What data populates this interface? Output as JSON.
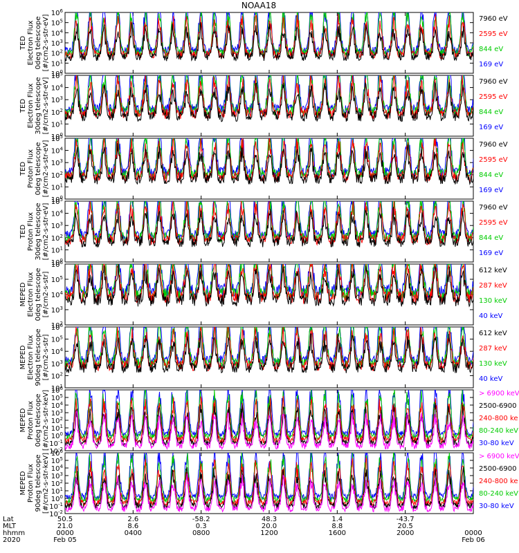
{
  "chart_data": {
    "type": "line",
    "title": "NOAA18",
    "x": [
      "0000",
      "0400",
      "0800",
      "1200",
      "1600",
      "2000",
      "0000"
    ],
    "panels": [
      {
        "ylabel": [
          "TED",
          "Electron Flux",
          "0deg telescope",
          "[#/cm2-s-str-eV]"
        ],
        "yscale": "log",
        "ylim_exp": [
          0,
          6
        ],
        "legend": [
          {
            "label": "7960 eV",
            "color": "#000000"
          },
          {
            "label": "2595 eV",
            "color": "#ff0000"
          },
          {
            "label": "844 eV",
            "color": "#00cc00"
          },
          {
            "label": "169 eV",
            "color": "#0000ff"
          }
        ]
      },
      {
        "ylabel": [
          "TED",
          "Electron Flux",
          "30deg telescope",
          "[#/cm2-s-str-eV]"
        ],
        "yscale": "log",
        "ylim_exp": [
          0,
          5
        ],
        "legend": [
          {
            "label": "7960 eV",
            "color": "#000000"
          },
          {
            "label": "2595 eV",
            "color": "#ff0000"
          },
          {
            "label": "844 eV",
            "color": "#00cc00"
          },
          {
            "label": "169 eV",
            "color": "#0000ff"
          }
        ]
      },
      {
        "ylabel": [
          "TED",
          "Proton Flux",
          "0deg telescope",
          "[#/cm2-s-str-eV]"
        ],
        "yscale": "log",
        "ylim_exp": [
          0,
          5
        ],
        "legend": [
          {
            "label": "7960 eV",
            "color": "#000000"
          },
          {
            "label": "2595 eV",
            "color": "#ff0000"
          },
          {
            "label": "844 eV",
            "color": "#00cc00"
          },
          {
            "label": "169 eV",
            "color": "#0000ff"
          }
        ]
      },
      {
        "ylabel": [
          "TED",
          "Proton Flux",
          "30deg telescope",
          "[#/cm2-s-str-eV]"
        ],
        "yscale": "log",
        "ylim_exp": [
          0,
          5
        ],
        "legend": [
          {
            "label": "7960 eV",
            "color": "#000000"
          },
          {
            "label": "2595 eV",
            "color": "#ff0000"
          },
          {
            "label": "844 eV",
            "color": "#00cc00"
          },
          {
            "label": "169 eV",
            "color": "#0000ff"
          }
        ]
      },
      {
        "ylabel": [
          "MEPED",
          "Electron Flux",
          "0deg telescope",
          "[#/cm2-s-str]"
        ],
        "yscale": "log",
        "ylim_exp": [
          2,
          6
        ],
        "legend": [
          {
            "label": "612 keV",
            "color": "#000000"
          },
          {
            "label": "287 keV",
            "color": "#ff0000"
          },
          {
            "label": "130 keV",
            "color": "#00cc00"
          },
          {
            "label": "40 keV",
            "color": "#0000ff"
          }
        ]
      },
      {
        "ylabel": [
          "MEPED",
          "Electron Flux",
          "90deg telescope",
          "[#/cm2-s-str]"
        ],
        "yscale": "log",
        "ylim_exp": [
          1,
          6
        ],
        "legend": [
          {
            "label": "612 keV",
            "color": "#000000"
          },
          {
            "label": "287 keV",
            "color": "#ff0000"
          },
          {
            "label": "130 keV",
            "color": "#00cc00"
          },
          {
            "label": "40 keV",
            "color": "#0000ff"
          }
        ]
      },
      {
        "ylabel": [
          "MEPED",
          "Proton Flux",
          "0deg telescope",
          "[#/cm2-s-str-keV]"
        ],
        "yscale": "log",
        "ylim_exp": [
          -2,
          6
        ],
        "legend": [
          {
            "label": "> 6900 keV",
            "color": "#ff00ff"
          },
          {
            "label": "2500-6900",
            "color": "#000000"
          },
          {
            "label": "240-800 ke",
            "color": "#ff0000"
          },
          {
            "label": "80-240 keV",
            "color": "#00cc00"
          },
          {
            "label": "30-80 keV",
            "color": "#0000ff"
          }
        ]
      },
      {
        "ylabel": [
          "MEPED",
          "Proton Flux",
          "90deg telescope",
          "[#/cm2-s-str-keV]"
        ],
        "yscale": "log",
        "ylim_exp": [
          -2,
          6
        ],
        "legend": [
          {
            "label": "> 6900 keV",
            "color": "#ff00ff"
          },
          {
            "label": "2500-6900",
            "color": "#000000"
          },
          {
            "label": "240-800 ke",
            "color": "#ff0000"
          },
          {
            "label": "80-240 keV",
            "color": "#00cc00"
          },
          {
            "label": "30-80 keV",
            "color": "#0000ff"
          }
        ]
      }
    ],
    "orbit_rows": [
      {
        "label": "Lat",
        "values": [
          "50.5",
          "2.6",
          "-58.2",
          "48.3",
          "1.4",
          "-43.7",
          ""
        ]
      },
      {
        "label": "MLT",
        "values": [
          "21.0",
          "8.6",
          "0.3",
          "20.0",
          "8.8",
          "20.5",
          ""
        ]
      },
      {
        "label": "hhmm",
        "values": [
          "0000",
          "0400",
          "0800",
          "1200",
          "1600",
          "2000",
          "0000"
        ]
      },
      {
        "label": "2020",
        "values": [
          "Feb 05",
          "",
          "",
          "",
          "",
          "",
          "Feb 06"
        ]
      }
    ]
  }
}
